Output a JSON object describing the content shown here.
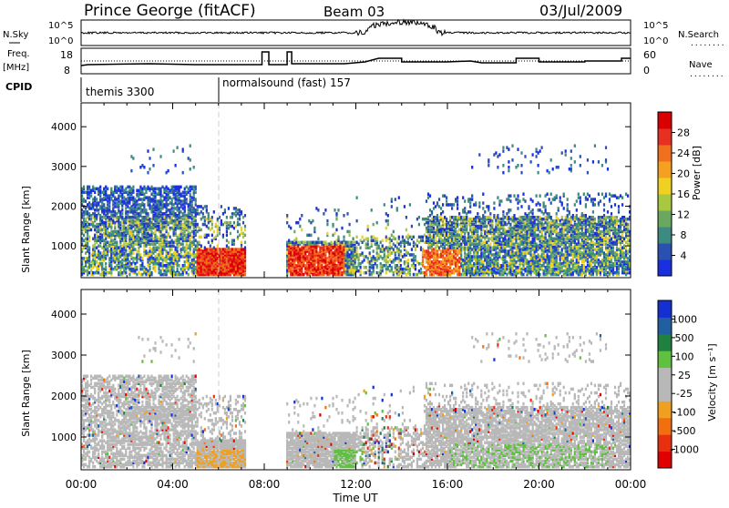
{
  "header": {
    "station": "Prince George (fitACF)",
    "beam": "Beam 03",
    "date": "03/Jul/2009"
  },
  "strip_labels": {
    "nsky": "N.Sky",
    "freq_top": "Freq.",
    "freq_unit": "[MHz]",
    "cpid": "CPID",
    "nsearch": "N.Search",
    "nave": "Nave",
    "dots": "........"
  },
  "strip_ticks": {
    "noise_left": [
      "10^5",
      "10^0"
    ],
    "noise_right": [
      "10^5",
      "10^0"
    ],
    "freq_left": [
      "18",
      "8"
    ],
    "freq_right": [
      "60",
      "0"
    ]
  },
  "cpid_segments": [
    {
      "label": "themis 3300",
      "start_hour": 0
    },
    {
      "label": "normalsound (fast) 157",
      "start_hour": 6
    }
  ],
  "chart_data": [
    {
      "type": "heatmap",
      "panel": "power",
      "ylabel": "Slant Range [km]",
      "xlabel": "",
      "ylim": [
        200,
        4600
      ],
      "yticks": [
        1000,
        2000,
        3000,
        4000
      ],
      "xticks": [
        "00:00",
        "04:00",
        "08:00",
        "12:00",
        "16:00",
        "20:00",
        "00:00"
      ],
      "colorbar": {
        "label": "Power [dB]",
        "ticks": [
          "4",
          "8",
          "12",
          "16",
          "20",
          "24",
          "28"
        ],
        "colors": [
          "#1a2fe0",
          "#2a50b0",
          "#3d8a80",
          "#6aa860",
          "#a8c840",
          "#f0d020",
          "#f5a020",
          "#f07020",
          "#e83020",
          "#d80000"
        ]
      },
      "missing_data_gap_hours": [
        7.2,
        8.9
      ]
    },
    {
      "type": "heatmap",
      "panel": "velocity",
      "ylabel": "Slant Range [km]",
      "xlabel": "Time UT",
      "ylim": [
        200,
        4600
      ],
      "yticks": [
        1000,
        2000,
        3000,
        4000
      ],
      "xticks": [
        "00:00",
        "04:00",
        "08:00",
        "12:00",
        "16:00",
        "20:00",
        "00:00"
      ],
      "colorbar": {
        "label": "Velocity [m s⁻¹]",
        "ticks": [
          "1000",
          "500",
          "100",
          "25",
          "-25",
          "-100",
          "-500",
          "-1000"
        ],
        "colors": [
          "#1530d0",
          "#2060a0",
          "#208040",
          "#60c040",
          "#b8b8b8",
          "#b8b8b8",
          "#f0a020",
          "#f07010",
          "#e83010",
          "#e00000"
        ]
      },
      "missing_data_gap_hours": [
        7.2,
        8.9
      ]
    }
  ]
}
